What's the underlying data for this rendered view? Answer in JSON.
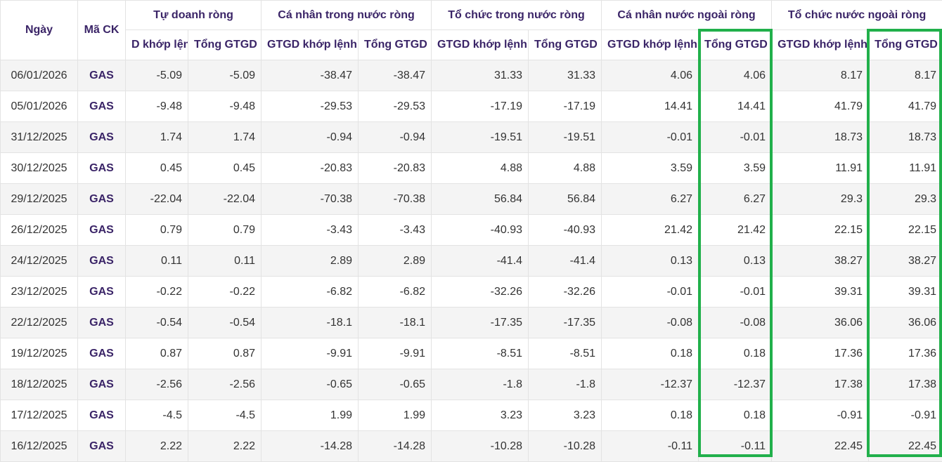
{
  "headers": {
    "date": "Ngày",
    "code": "Mã CK",
    "groups": [
      "Tự doanh ròng",
      "Cá nhân trong nước ròng",
      "Tổ chức trong nước ròng",
      "Cá nhân nước ngoài ròng",
      "Tổ chức nước ngoài ròng"
    ],
    "sub_first_clipped": "D khớp lệnh",
    "sub_match": "GTGD khớp lệnh",
    "sub_total": "Tổng GTGD"
  },
  "highlight_color": "#21b04b",
  "rows": [
    [
      "06/01/2026",
      "GAS",
      "-5.09",
      "-5.09",
      "-38.47",
      "-38.47",
      "31.33",
      "31.33",
      "4.06",
      "4.06",
      "8.17",
      "8.17"
    ],
    [
      "05/01/2026",
      "GAS",
      "-9.48",
      "-9.48",
      "-29.53",
      "-29.53",
      "-17.19",
      "-17.19",
      "14.41",
      "14.41",
      "41.79",
      "41.79"
    ],
    [
      "31/12/2025",
      "GAS",
      "1.74",
      "1.74",
      "-0.94",
      "-0.94",
      "-19.51",
      "-19.51",
      "-0.01",
      "-0.01",
      "18.73",
      "18.73"
    ],
    [
      "30/12/2025",
      "GAS",
      "0.45",
      "0.45",
      "-20.83",
      "-20.83",
      "4.88",
      "4.88",
      "3.59",
      "3.59",
      "11.91",
      "11.91"
    ],
    [
      "29/12/2025",
      "GAS",
      "-22.04",
      "-22.04",
      "-70.38",
      "-70.38",
      "56.84",
      "56.84",
      "6.27",
      "6.27",
      "29.3",
      "29.3"
    ],
    [
      "26/12/2025",
      "GAS",
      "0.79",
      "0.79",
      "-3.43",
      "-3.43",
      "-40.93",
      "-40.93",
      "21.42",
      "21.42",
      "22.15",
      "22.15"
    ],
    [
      "24/12/2025",
      "GAS",
      "0.11",
      "0.11",
      "2.89",
      "2.89",
      "-41.4",
      "-41.4",
      "0.13",
      "0.13",
      "38.27",
      "38.27"
    ],
    [
      "23/12/2025",
      "GAS",
      "-0.22",
      "-0.22",
      "-6.82",
      "-6.82",
      "-32.26",
      "-32.26",
      "-0.01",
      "-0.01",
      "39.31",
      "39.31"
    ],
    [
      "22/12/2025",
      "GAS",
      "-0.54",
      "-0.54",
      "-18.1",
      "-18.1",
      "-17.35",
      "-17.35",
      "-0.08",
      "-0.08",
      "36.06",
      "36.06"
    ],
    [
      "19/12/2025",
      "GAS",
      "0.87",
      "0.87",
      "-9.91",
      "-9.91",
      "-8.51",
      "-8.51",
      "0.18",
      "0.18",
      "17.36",
      "17.36"
    ],
    [
      "18/12/2025",
      "GAS",
      "-2.56",
      "-2.56",
      "-0.65",
      "-0.65",
      "-1.8",
      "-1.8",
      "-12.37",
      "-12.37",
      "17.38",
      "17.38"
    ],
    [
      "17/12/2025",
      "GAS",
      "-4.5",
      "-4.5",
      "1.99",
      "1.99",
      "3.23",
      "3.23",
      "0.18",
      "0.18",
      "-0.91",
      "-0.91"
    ],
    [
      "16/12/2025",
      "GAS",
      "2.22",
      "2.22",
      "-14.28",
      "-14.28",
      "-10.28",
      "-10.28",
      "-0.11",
      "-0.11",
      "22.45",
      "22.45"
    ]
  ]
}
